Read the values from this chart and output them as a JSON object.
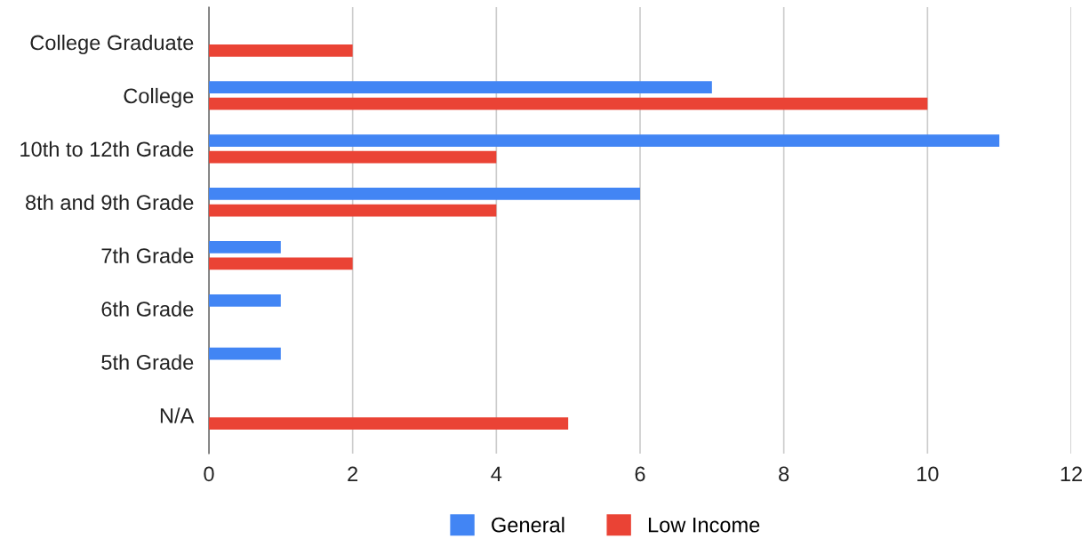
{
  "chart_data": {
    "type": "bar",
    "orientation": "horizontal",
    "categories": [
      "College Graduate",
      "College",
      "10th to 12th Grade",
      "8th and 9th Grade",
      "7th Grade",
      "6th Grade",
      "5th Grade",
      "N/A"
    ],
    "series": [
      {
        "name": "General",
        "color": "#4285f4",
        "values": [
          0,
          7,
          11,
          6,
          1,
          1,
          1,
          0
        ]
      },
      {
        "name": "Low Income",
        "color": "#ea4335",
        "values": [
          2,
          10,
          4,
          4,
          2,
          0,
          0,
          5
        ]
      }
    ],
    "xlim": [
      0,
      12
    ],
    "xticks": [
      0,
      2,
      4,
      6,
      8,
      10,
      12
    ],
    "grid": "x",
    "legend": "bottom"
  }
}
